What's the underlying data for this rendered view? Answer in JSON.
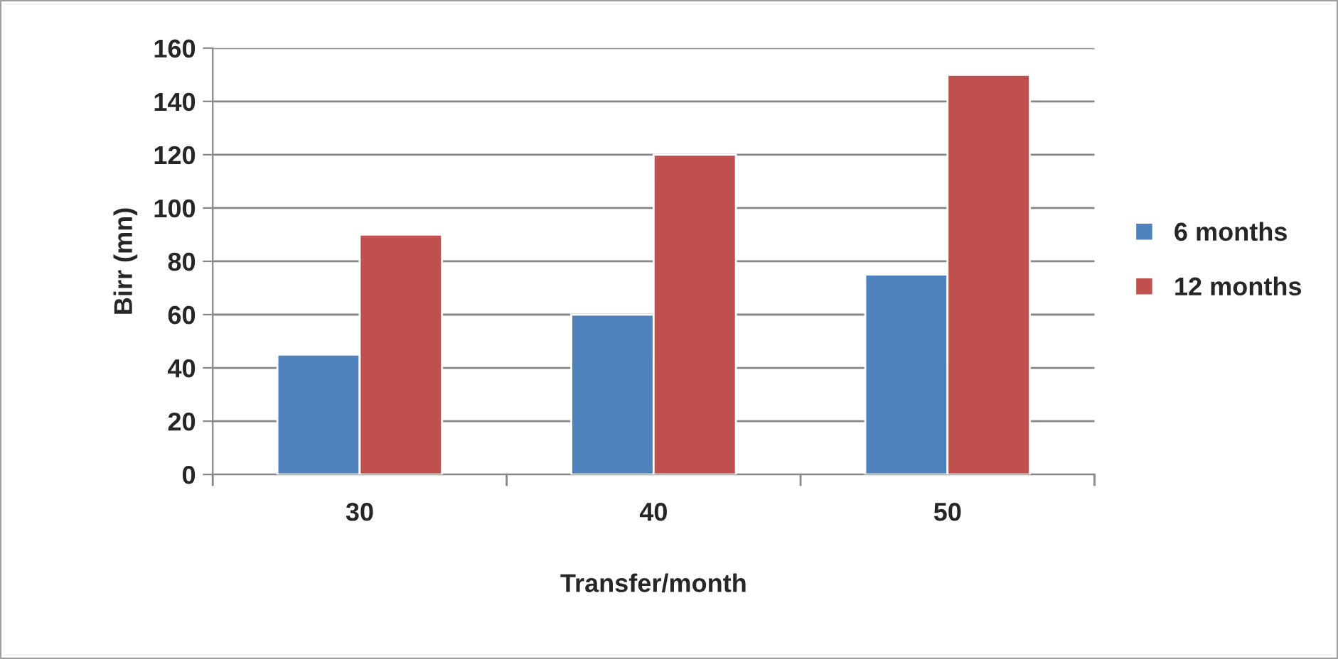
{
  "chart_data": {
    "type": "bar",
    "xlabel": "Transfer/month",
    "ylabel": "Birr (mn)",
    "categories": [
      "30",
      "40",
      "50"
    ],
    "series": [
      {
        "name": "6 months",
        "color": "#4f81bd",
        "values": [
          45,
          60,
          75
        ]
      },
      {
        "name": "12 months",
        "color": "#c0504d",
        "values": [
          90,
          120,
          150
        ]
      }
    ],
    "ylim": [
      0,
      160
    ],
    "yticks": [
      0,
      20,
      40,
      60,
      80,
      100,
      120,
      140,
      160
    ],
    "grid": "y",
    "legend": "right"
  }
}
